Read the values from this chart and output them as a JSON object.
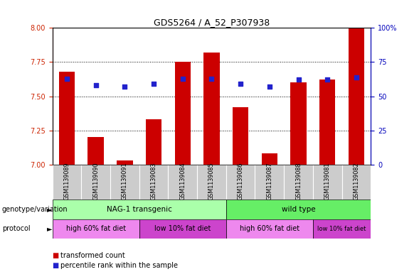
{
  "title": "GDS5264 / A_52_P307938",
  "samples": [
    "GSM1139089",
    "GSM1139090",
    "GSM1139091",
    "GSM1139083",
    "GSM1139084",
    "GSM1139085",
    "GSM1139086",
    "GSM1139087",
    "GSM1139088",
    "GSM1139081",
    "GSM1139082"
  ],
  "transformed_counts": [
    7.68,
    7.2,
    7.03,
    7.33,
    7.75,
    7.82,
    7.42,
    7.08,
    7.6,
    7.62,
    8.0
  ],
  "percentile_ranks": [
    63,
    58,
    57,
    59,
    63,
    63,
    59,
    57,
    62,
    62,
    64
  ],
  "ylim_left": [
    7.0,
    8.0
  ],
  "ylim_right": [
    0,
    100
  ],
  "yticks_left": [
    7.0,
    7.25,
    7.5,
    7.75,
    8.0
  ],
  "yticks_right": [
    0,
    25,
    50,
    75,
    100
  ],
  "red_color": "#cc0000",
  "blue_color": "#2222cc",
  "bar_width": 0.55,
  "dot_size": 22,
  "axis_left_color": "#cc2200",
  "axis_right_color": "#0000bb",
  "plot_bg": "#ffffff",
  "label_bg": "#cccccc",
  "nag_color": "#aaffaa",
  "wt_color": "#66ee66",
  "proto1_color": "#ee88ee",
  "proto2_color": "#cc44cc",
  "nag_count": 6,
  "wt_count": 5,
  "proto_splits": [
    3,
    6,
    9,
    11
  ],
  "protocol_labels": [
    "high 60% fat diet",
    "low 10% fat diet",
    "high 60% fat diet",
    "low 10% fat diet"
  ],
  "genotype_labels": [
    "NAG-1 transgenic",
    "wild type"
  ],
  "legend_red": "transformed count",
  "legend_blue": "percentile rank within the sample",
  "left_label_genotype": "genotype/variation",
  "left_label_protocol": "protocol"
}
